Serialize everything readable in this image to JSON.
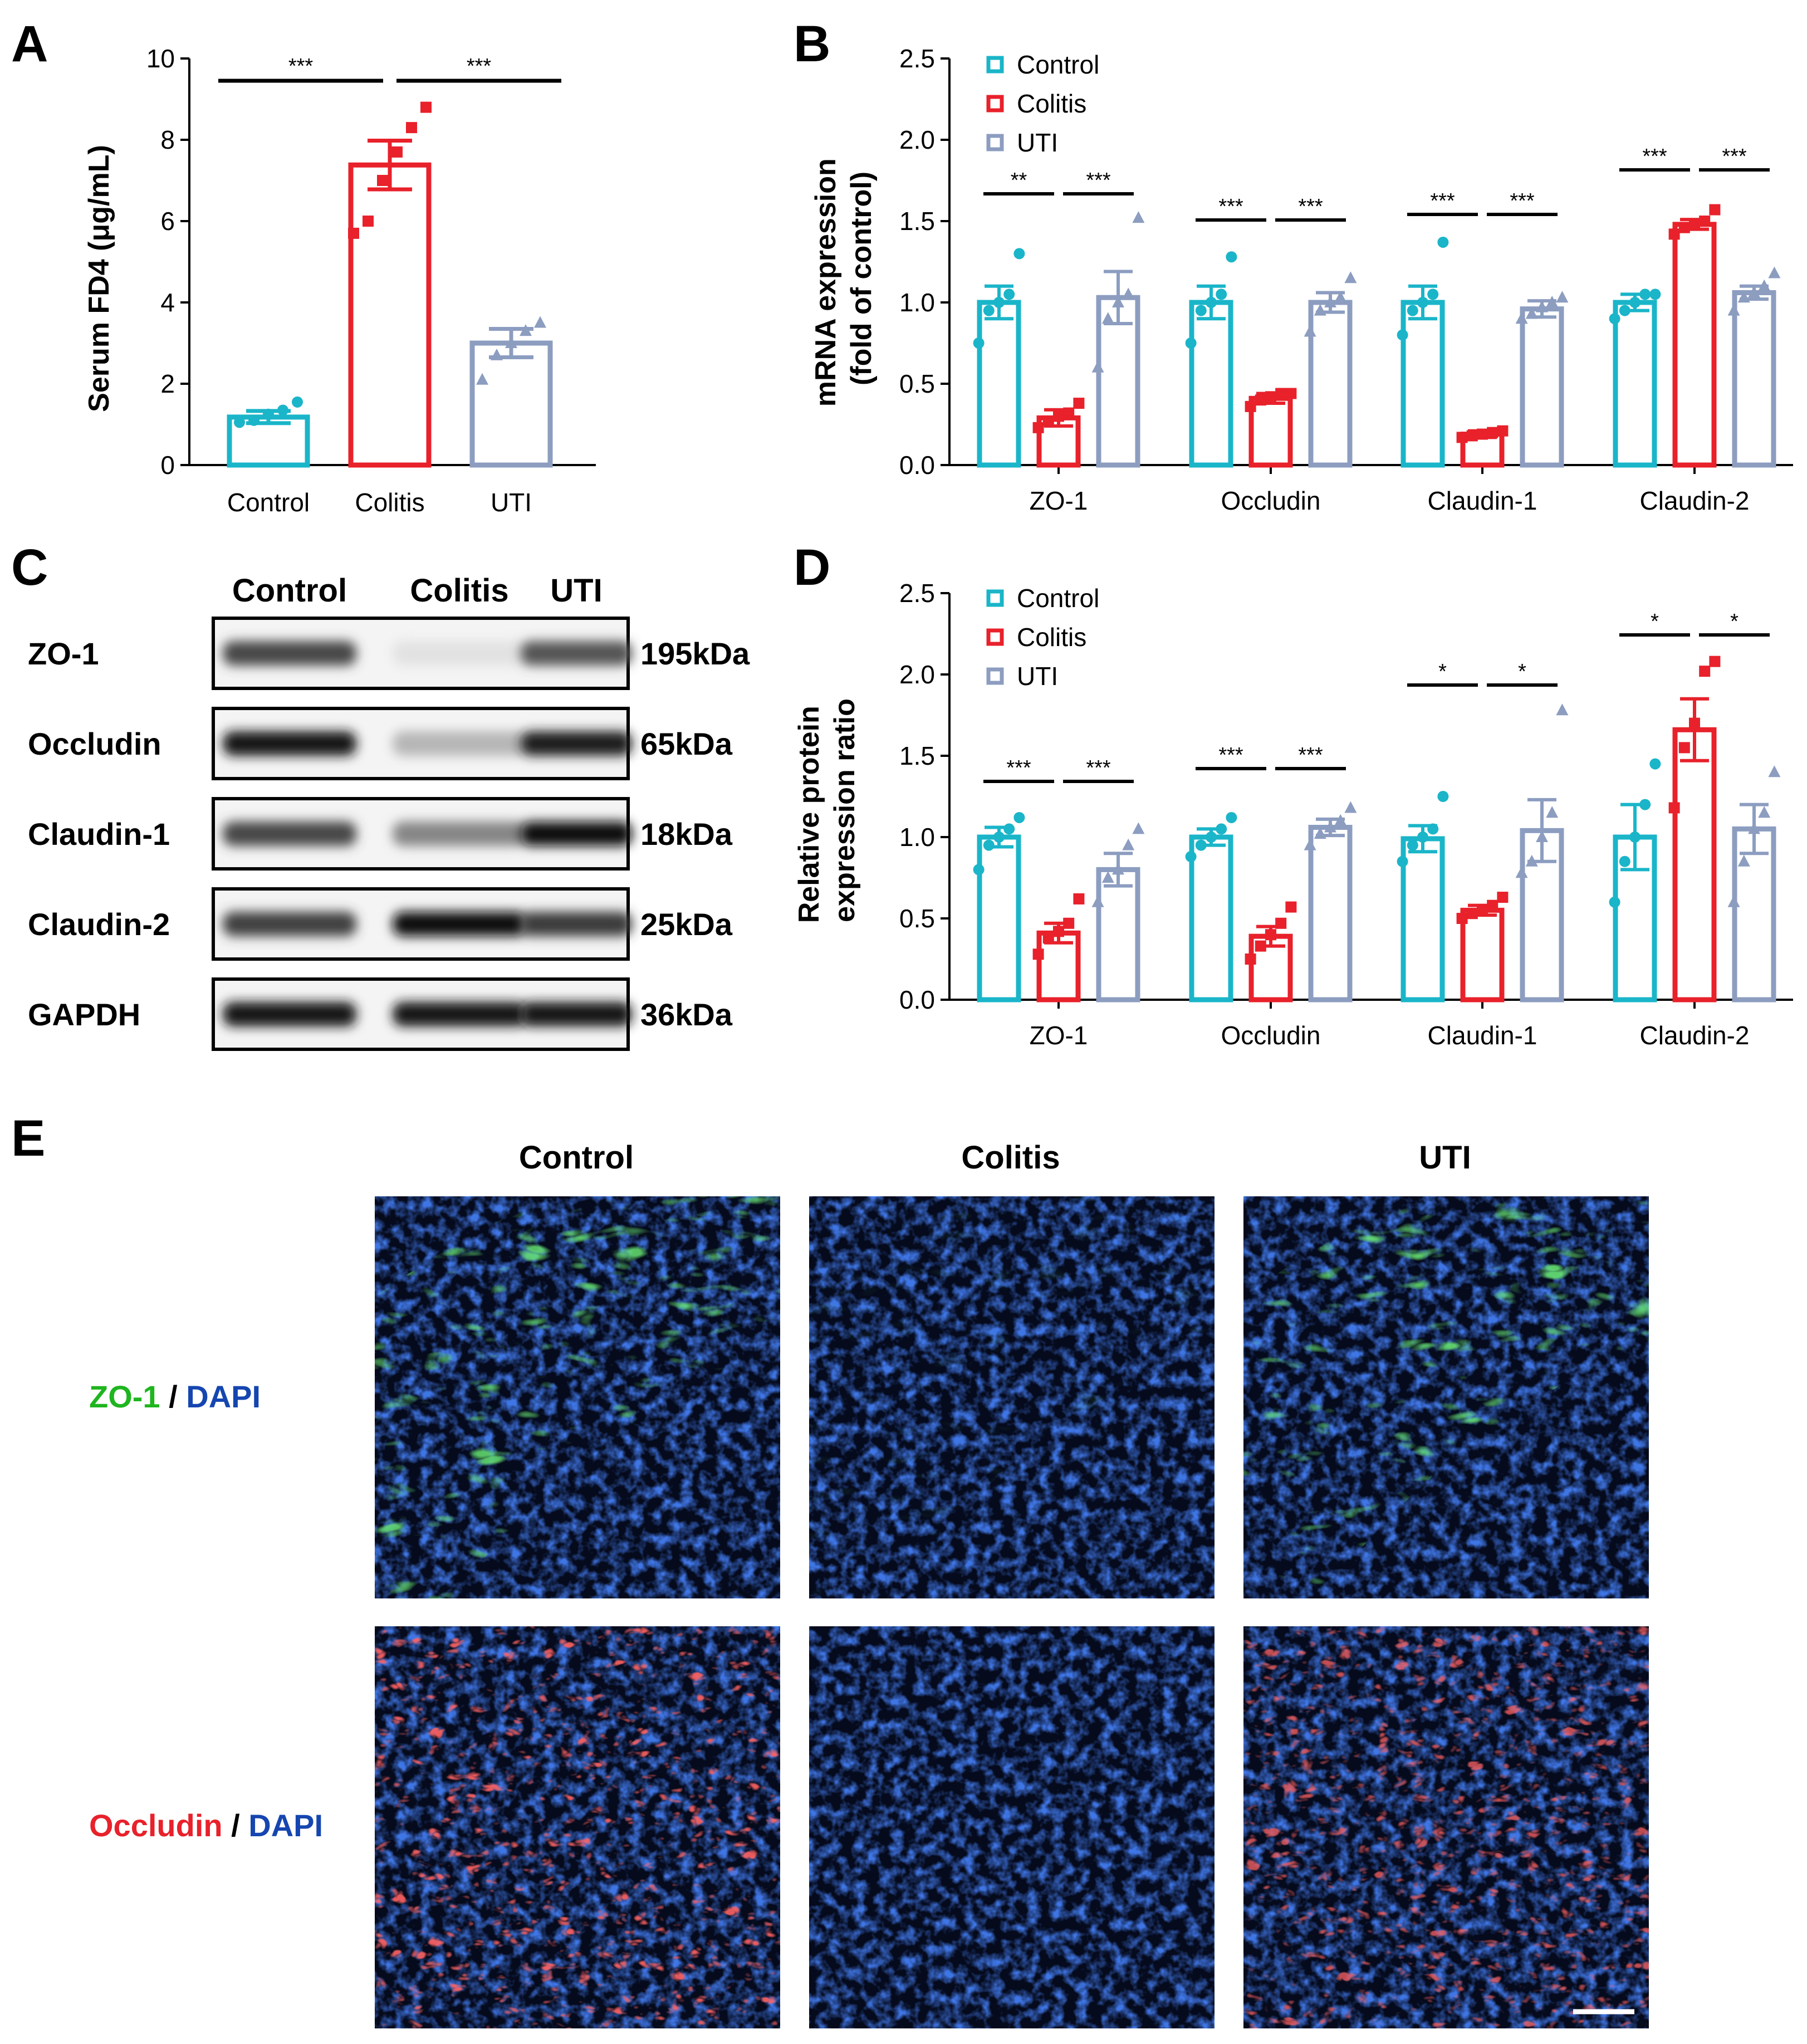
{
  "panels": {
    "A": {
      "letter": "A"
    },
    "B": {
      "letter": "B"
    },
    "C": {
      "letter": "C"
    },
    "D": {
      "letter": "D"
    },
    "E": {
      "letter": "E"
    }
  },
  "colors": {
    "control": "#1ab5c9",
    "colitis": "#e8212b",
    "uti": "#8c9dc0"
  },
  "chart_data": [
    {
      "panel": "A",
      "type": "bar",
      "ylabel": "Serum FD4 (μg/mL)",
      "ylim": [
        0,
        10
      ],
      "yticks": [
        "0",
        "2",
        "4",
        "6",
        "8",
        "10"
      ],
      "categories": [
        "Control",
        "Colitis",
        "UTI"
      ],
      "values": [
        1.18,
        7.38,
        3.0
      ],
      "sem": [
        0.15,
        0.6,
        0.35
      ],
      "points": [
        [
          1.05,
          1.1,
          1.25,
          1.35,
          1.55
        ],
        [
          5.7,
          6.0,
          7.0,
          7.7,
          8.3,
          8.8
        ],
        [
          2.1,
          2.7,
          3.0,
          3.3,
          3.5
        ]
      ],
      "significance": [
        {
          "from": 0,
          "to": 1,
          "label": "***"
        },
        {
          "from": 1,
          "to": 2,
          "label": "***"
        }
      ]
    },
    {
      "panel": "B",
      "type": "bar",
      "ylabel": "mRNA expression\n(fold of control)",
      "ylim": [
        0,
        2.5
      ],
      "yticks": [
        "0.0",
        "0.5",
        "1.0",
        "1.5",
        "2.0",
        "2.5"
      ],
      "categories": [
        "ZO-1",
        "Occludin",
        "Claudin-1",
        "Claudin-2"
      ],
      "legend": [
        "Control",
        "Colitis",
        "UTI"
      ],
      "series": [
        {
          "name": "Control",
          "values": [
            1.0,
            1.0,
            1.0,
            1.0
          ],
          "sem": [
            0.1,
            0.1,
            0.1,
            0.05
          ],
          "points": [
            [
              0.75,
              0.95,
              1.0,
              1.05,
              1.3
            ],
            [
              0.75,
              0.95,
              1.0,
              1.05,
              1.28
            ],
            [
              0.8,
              0.95,
              1.0,
              1.05,
              1.37
            ],
            [
              0.9,
              0.95,
              1.0,
              1.05,
              1.05
            ]
          ]
        },
        {
          "name": "Colitis",
          "values": [
            0.29,
            0.41,
            0.19,
            1.48
          ],
          "sem": [
            0.05,
            0.03,
            0.02,
            0.03
          ],
          "points": [
            [
              0.23,
              0.27,
              0.3,
              0.32,
              0.38
            ],
            [
              0.36,
              0.4,
              0.42,
              0.44,
              0.44
            ],
            [
              0.17,
              0.18,
              0.19,
              0.2,
              0.21
            ],
            [
              1.42,
              1.46,
              1.48,
              1.5,
              1.57
            ]
          ]
        },
        {
          "name": "UTI",
          "values": [
            1.03,
            1.0,
            0.96,
            1.06
          ],
          "sem": [
            0.16,
            0.06,
            0.05,
            0.04
          ],
          "points": [
            [
              0.6,
              0.9,
              1.0,
              1.05,
              1.52
            ],
            [
              0.82,
              0.95,
              1.0,
              1.03,
              1.15
            ],
            [
              0.9,
              0.93,
              0.97,
              1.0,
              1.03
            ],
            [
              0.95,
              1.03,
              1.06,
              1.1,
              1.18
            ]
          ]
        }
      ],
      "significance": [
        {
          "group": 0,
          "pair": "left",
          "label": "**"
        },
        {
          "group": 0,
          "pair": "right",
          "label": "***"
        },
        {
          "group": 1,
          "pair": "left",
          "label": "***"
        },
        {
          "group": 1,
          "pair": "right",
          "label": "***"
        },
        {
          "group": 2,
          "pair": "left",
          "label": "***"
        },
        {
          "group": 2,
          "pair": "right",
          "label": "***"
        },
        {
          "group": 3,
          "pair": "left",
          "label": "***"
        },
        {
          "group": 3,
          "pair": "right",
          "label": "***"
        }
      ]
    },
    {
      "panel": "D",
      "type": "bar",
      "ylabel": "Relative protein\nexpression  ratio",
      "ylim": [
        0,
        2.5
      ],
      "yticks": [
        "0.0",
        "0.5",
        "1.0",
        "1.5",
        "2.0",
        "2.5"
      ],
      "categories": [
        "ZO-1",
        "Occludin",
        "Claudin-1",
        "Claudin-2"
      ],
      "legend": [
        "Control",
        "Colitis",
        "UTI"
      ],
      "series": [
        {
          "name": "Control",
          "values": [
            1.0,
            1.0,
            0.99,
            1.0
          ],
          "sem": [
            0.06,
            0.05,
            0.08,
            0.2
          ],
          "points": [
            [
              0.8,
              0.95,
              1.0,
              1.05,
              1.12
            ],
            [
              0.88,
              0.95,
              1.0,
              1.05,
              1.12
            ],
            [
              0.85,
              0.95,
              1.0,
              1.05,
              1.25
            ],
            [
              0.6,
              0.85,
              1.0,
              1.2,
              1.45
            ]
          ]
        },
        {
          "name": "Colitis",
          "values": [
            0.41,
            0.39,
            0.55,
            1.66
          ],
          "sem": [
            0.06,
            0.06,
            0.03,
            0.19
          ],
          "points": [
            [
              0.28,
              0.38,
              0.42,
              0.47,
              0.62
            ],
            [
              0.25,
              0.33,
              0.4,
              0.47,
              0.57
            ],
            [
              0.5,
              0.53,
              0.55,
              0.58,
              0.63
            ],
            [
              1.18,
              1.55,
              1.7,
              2.02,
              2.08
            ]
          ]
        },
        {
          "name": "UTI",
          "values": [
            0.8,
            1.06,
            1.04,
            1.05
          ],
          "sem": [
            0.1,
            0.05,
            0.19,
            0.15
          ],
          "points": [
            [
              0.6,
              0.75,
              0.8,
              0.95,
              1.05
            ],
            [
              0.95,
              1.02,
              1.06,
              1.1,
              1.18
            ],
            [
              0.78,
              0.85,
              1.0,
              1.15,
              1.78
            ],
            [
              0.6,
              0.85,
              1.05,
              1.15,
              1.4
            ]
          ]
        }
      ],
      "significance": [
        {
          "group": 0,
          "pair": "left",
          "label": "***"
        },
        {
          "group": 0,
          "pair": "right",
          "label": "***"
        },
        {
          "group": 1,
          "pair": "left",
          "label": "***"
        },
        {
          "group": 1,
          "pair": "right",
          "label": "***"
        },
        {
          "group": 2,
          "pair": "left",
          "label": "*"
        },
        {
          "group": 2,
          "pair": "right",
          "label": "*"
        },
        {
          "group": 3,
          "pair": "left",
          "label": "*"
        },
        {
          "group": 3,
          "pair": "right",
          "label": "*"
        }
      ]
    }
  ],
  "western_blot": {
    "columns": [
      "Control",
      "Colitis",
      "UTI"
    ],
    "rows": [
      {
        "protein": "ZO-1",
        "size": "195kDa",
        "intensity": [
          0.75,
          0.12,
          0.7
        ]
      },
      {
        "protein": "Occludin",
        "size": "65kDa",
        "intensity": [
          0.95,
          0.3,
          0.92
        ]
      },
      {
        "protein": "Claudin-1",
        "size": "18kDa",
        "intensity": [
          0.75,
          0.5,
          0.97
        ]
      },
      {
        "protein": "Claudin-2",
        "size": "25kDa",
        "intensity": [
          0.78,
          0.98,
          0.8
        ]
      },
      {
        "protein": "GAPDH",
        "size": "36kDa",
        "intensity": [
          0.95,
          0.95,
          0.95
        ]
      }
    ]
  },
  "immunofluorescence": {
    "columns": [
      "Control",
      "Colitis",
      "UTI"
    ],
    "rows": [
      {
        "marker": "ZO-1",
        "sep": " / ",
        "counterstain": "DAPI",
        "marker_color": "#1fb51f",
        "counter_color": "#1546b0",
        "signal_color": "#22c22a",
        "signal_level": [
          0.85,
          0.08,
          0.9
        ]
      },
      {
        "marker": "Occludin",
        "sep": " / ",
        "counterstain": "DAPI",
        "marker_color": "#e8212b",
        "counter_color": "#1546b0",
        "signal_color": "#ff2020",
        "signal_level": [
          0.9,
          0.02,
          0.75
        ]
      }
    ]
  }
}
